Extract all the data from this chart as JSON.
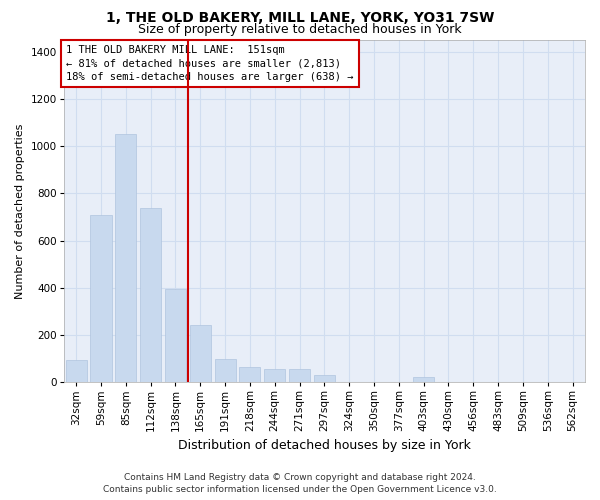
{
  "title": "1, THE OLD BAKERY, MILL LANE, YORK, YO31 7SW",
  "subtitle": "Size of property relative to detached houses in York",
  "xlabel": "Distribution of detached houses by size in York",
  "ylabel": "Number of detached properties",
  "footer_line1": "Contains HM Land Registry data © Crown copyright and database right 2024.",
  "footer_line2": "Contains public sector information licensed under the Open Government Licence v3.0.",
  "annotation_line1": "1 THE OLD BAKERY MILL LANE:  151sqm",
  "annotation_line2": "← 81% of detached houses are smaller (2,813)",
  "annotation_line3": "18% of semi-detached houses are larger (638) →",
  "bar_color": "#c8d9ee",
  "bar_edge_color": "#b0c4de",
  "vline_color": "#cc0000",
  "vline_x": 4.5,
  "categories": [
    "32sqm",
    "59sqm",
    "85sqm",
    "112sqm",
    "138sqm",
    "165sqm",
    "191sqm",
    "218sqm",
    "244sqm",
    "271sqm",
    "297sqm",
    "324sqm",
    "350sqm",
    "377sqm",
    "403sqm",
    "430sqm",
    "456sqm",
    "483sqm",
    "509sqm",
    "536sqm",
    "562sqm"
  ],
  "values": [
    95,
    710,
    1050,
    740,
    395,
    240,
    100,
    65,
    55,
    55,
    30,
    0,
    0,
    0,
    20,
    0,
    0,
    0,
    0,
    0,
    0
  ],
  "ylim": [
    0,
    1450
  ],
  "yticks": [
    0,
    200,
    400,
    600,
    800,
    1000,
    1200,
    1400
  ],
  "grid_color": "#d0ddf0",
  "bg_color": "#e8eef8",
  "annotation_box_facecolor": "#ffffff",
  "annotation_box_edge": "#cc0000",
  "title_fontsize": 10,
  "subtitle_fontsize": 9,
  "ylabel_fontsize": 8,
  "xlabel_fontsize": 9,
  "tick_fontsize": 7.5,
  "annotation_fontsize": 7.5,
  "footer_fontsize": 6.5
}
